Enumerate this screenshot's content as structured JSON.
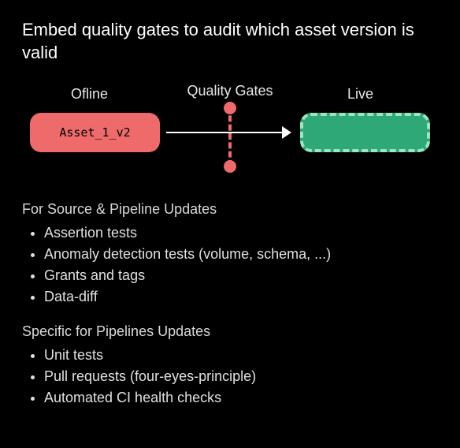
{
  "title": "Embed quality gates to audit which asset version is valid",
  "diagram": {
    "offline_label": "Ofline",
    "gates_label": "Quality Gates",
    "live_label": "Live",
    "asset_box_text": "Asset_1_v2",
    "asset_box_color": "#ef6a6a",
    "live_box_color": "#2ea877",
    "live_box_border_color": "#9de4c1",
    "gate_line_color": "#ef6a6a",
    "gate_dot_color": "#ef6a6a",
    "arrow_color": "#ffffff"
  },
  "sections": {
    "source_pipeline": {
      "heading": "For Source & Pipeline Updates",
      "items": [
        "Assertion tests",
        "Anomaly detection tests (volume, schema, ...)",
        "Grants and tags",
        "Data-diff"
      ]
    },
    "pipelines_specific": {
      "heading": "Specific for Pipelines Updates",
      "items": [
        "Unit tests",
        "Pull requests (four-eyes-principle)",
        "Automated CI health checks"
      ]
    }
  },
  "colors": {
    "background": "#000000",
    "text_primary": "#ffffff",
    "text_secondary": "#e0e0e0"
  }
}
